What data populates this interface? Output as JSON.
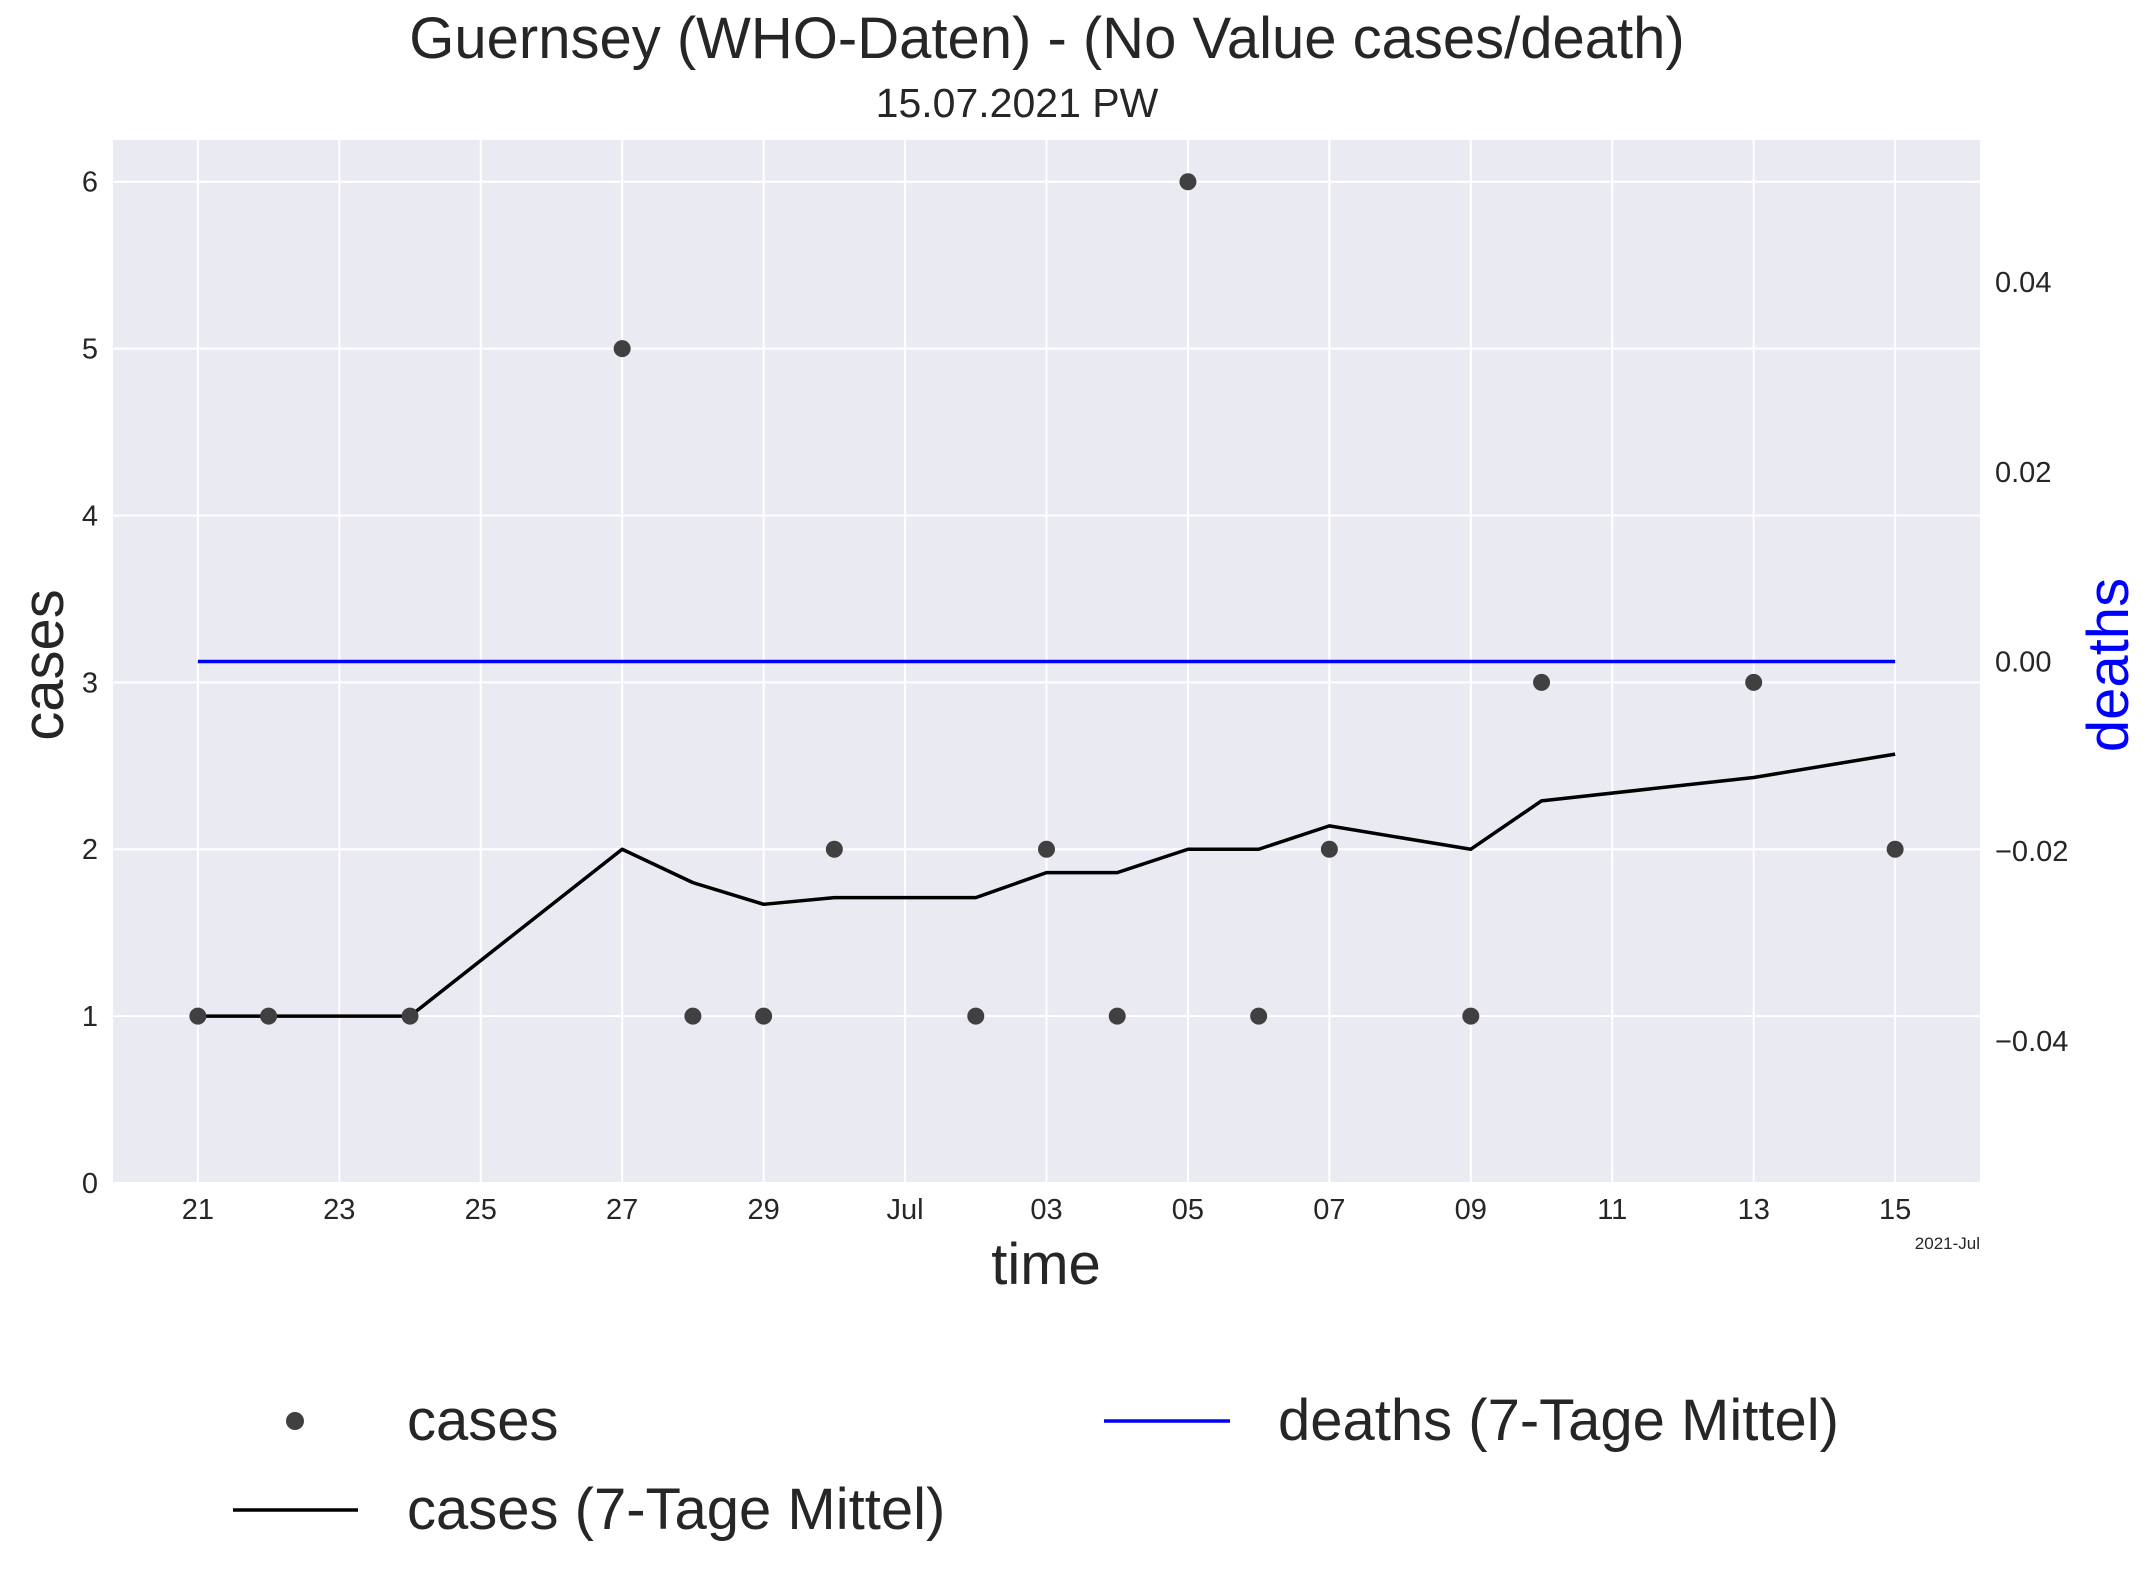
{
  "chart_data": {
    "type": "line",
    "title": "Guernsey (WHO-Daten) - (No Value cases/death)",
    "subtitle": "15.07.2021 PW",
    "xlabel": "time",
    "ylabel": "cases",
    "y2label": "deaths",
    "x_offset_label": "2021-Jul",
    "x_tick_labels": [
      "21",
      "23",
      "25",
      "27",
      "29",
      "Jul",
      "03",
      "05",
      "07",
      "09",
      "11",
      "13",
      "15"
    ],
    "x_tick_dates": [
      "2021-06-21",
      "2021-06-23",
      "2021-06-25",
      "2021-06-27",
      "2021-06-29",
      "2021-07-01",
      "2021-07-03",
      "2021-07-05",
      "2021-07-07",
      "2021-07-09",
      "2021-07-11",
      "2021-07-13",
      "2021-07-15"
    ],
    "xlim": [
      "2021-06-19 19:12",
      "2021-07-16 04:48"
    ],
    "ylim": [
      0,
      6.25
    ],
    "y_ticks": [
      0,
      1,
      2,
      3,
      4,
      5,
      6
    ],
    "y2lim": [
      -0.055,
      0.055
    ],
    "y2_ticks": [
      0.04,
      0.02,
      0.0,
      -0.02,
      -0.04
    ],
    "y2_tick_labels": [
      "0.04",
      "0.02",
      "0.00",
      "−0.02",
      "−0.04"
    ],
    "grid": true,
    "legend_position": "bottom",
    "colors": {
      "plot_bg": "#eaeaf2",
      "grid": "#ffffff",
      "cases_points": "#404040",
      "cases_avg": "#000000",
      "deaths_avg": "#0000ff",
      "y2label": "#0000ff"
    },
    "series": [
      {
        "name": "cases",
        "kind": "scatter",
        "x": [
          "2021-06-21",
          "2021-06-22",
          "2021-06-24",
          "2021-06-27",
          "2021-06-28",
          "2021-06-29",
          "2021-06-30",
          "2021-07-02",
          "2021-07-03",
          "2021-07-04",
          "2021-07-05",
          "2021-07-06",
          "2021-07-07",
          "2021-07-09",
          "2021-07-10",
          "2021-07-13",
          "2021-07-15"
        ],
        "y": [
          1,
          1,
          1,
          5,
          1,
          1,
          2,
          1,
          2,
          1,
          6,
          1,
          2,
          1,
          3,
          3,
          2
        ]
      },
      {
        "name": "cases (7-Tage Mittel)",
        "kind": "line",
        "x": [
          "2021-06-21",
          "2021-06-22",
          "2021-06-24",
          "2021-06-27",
          "2021-06-28",
          "2021-06-29",
          "2021-06-30",
          "2021-07-02",
          "2021-07-03",
          "2021-07-04",
          "2021-07-05",
          "2021-07-06",
          "2021-07-07",
          "2021-07-09",
          "2021-07-10",
          "2021-07-13",
          "2021-07-15"
        ],
        "y": [
          1.0,
          1.0,
          1.0,
          2.0,
          1.8,
          1.67,
          1.71,
          1.71,
          1.86,
          1.86,
          2.0,
          2.0,
          2.14,
          2.0,
          2.29,
          2.43,
          2.57
        ]
      },
      {
        "name": "deaths (7-Tage Mittel)",
        "kind": "line",
        "axis": "right",
        "x": [
          "2021-06-21",
          "2021-07-15"
        ],
        "y": [
          0.0,
          0.0
        ]
      }
    ]
  }
}
